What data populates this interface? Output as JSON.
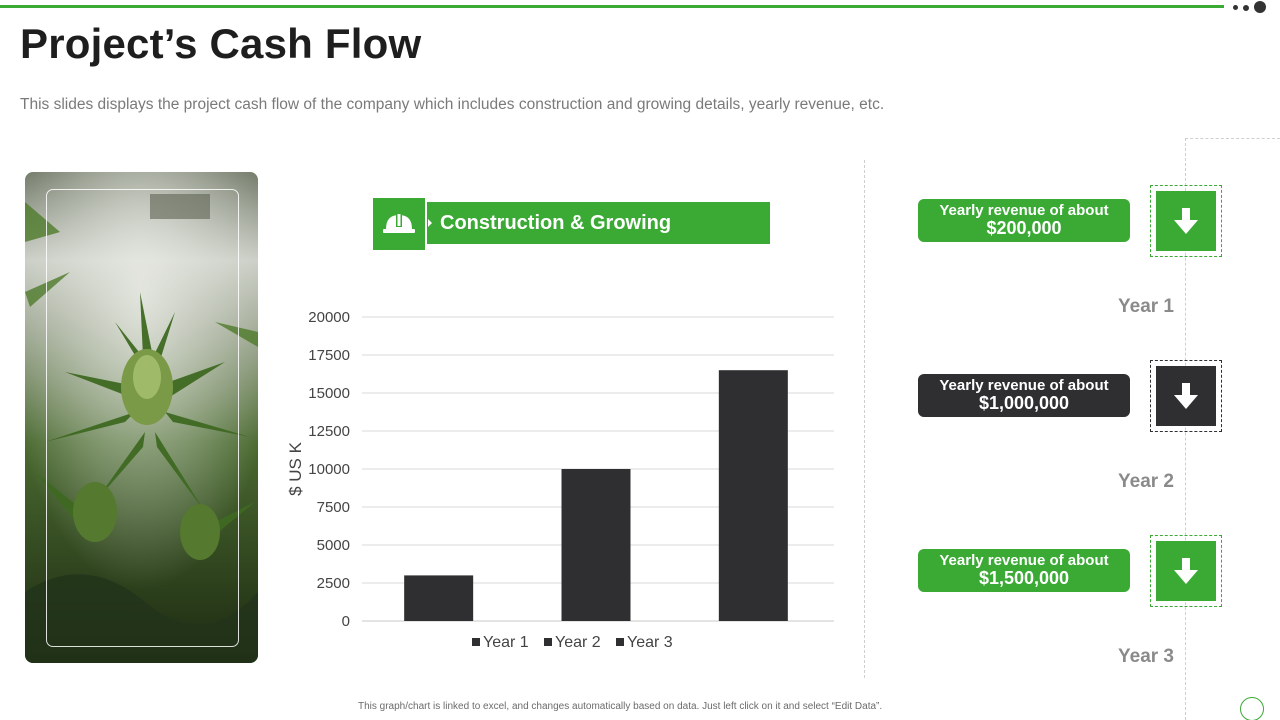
{
  "title": "Project’s Cash Flow",
  "subtitle": "This slides displays the project cash flow of the company which includes construction  and growing details, yearly revenue,  etc.",
  "header": {
    "label": "Construction & Growing",
    "icon": "hard-hat-icon"
  },
  "revenues": [
    {
      "line1": "Yearly revenue of about",
      "line2": "$200,000",
      "year": "Year 1",
      "color": "#3aaa35",
      "icon": "arrow-down-icon"
    },
    {
      "line1": "Yearly revenue of about",
      "line2": "$1,000,000",
      "year": "Year 2",
      "color": "#2f2f31",
      "icon": "arrow-down-icon"
    },
    {
      "line1": "Yearly revenue of about",
      "line2": "$1,500,000",
      "year": "Year 3",
      "color": "#3aaa35",
      "icon": "arrow-down-icon"
    }
  ],
  "footnote": "This graph/chart is linked to excel, and changes automatically based on data. Just left click on it and select “Edit Data”.",
  "colors": {
    "accent": "#3aaa35",
    "dark": "#2f2f31"
  },
  "chart_data": {
    "type": "bar",
    "categories": [
      "Year 1",
      "Year 2",
      "Year 3"
    ],
    "values": [
      3000,
      10000,
      16500
    ],
    "yticks": [
      0,
      2500,
      5000,
      7500,
      10000,
      12500,
      15000,
      17500,
      20000
    ],
    "ylim": [
      0,
      20000
    ],
    "ylabel": "$ US K",
    "legend": [
      "Year 1",
      "Year 2",
      "Year 3"
    ],
    "legend_position": "bottom",
    "grid": true,
    "bar_color": "#2f2f31"
  }
}
